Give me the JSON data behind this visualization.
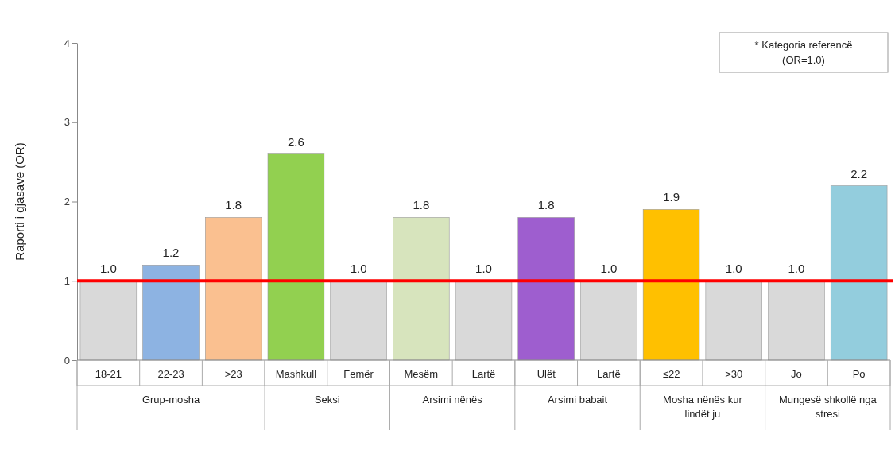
{
  "chart_data": {
    "type": "bar",
    "ylabel": "Raporti i gjasave (OR)",
    "categories": [
      "18-21",
      "22-23",
      ">23",
      "Mashkull",
      "Femër",
      "Mesëm",
      "Lartë",
      "Ulët",
      "Lartë",
      "≤22",
      ">30",
      "Jo",
      "Po"
    ],
    "values": [
      1.0,
      1.2,
      1.8,
      2.6,
      1.0,
      1.8,
      1.0,
      1.8,
      1.0,
      1.9,
      1.0,
      1.0,
      2.2
    ],
    "colors": [
      "#d9d9d9",
      "#8db3e2",
      "#fac090",
      "#92d050",
      "#d9d9d9",
      "#d7e4bd",
      "#d9d9d9",
      "#9e5ecf",
      "#d9d9d9",
      "#ffc000",
      "#d9d9d9",
      "#d9d9d9",
      "#93cddd"
    ],
    "value_labels": [
      "1.0",
      "1.2",
      "1.8",
      "2.6",
      "1.0",
      "1.8",
      "1.0",
      "1.8",
      "1.0",
      "1.9",
      "1.0",
      "1.0",
      "2.2"
    ],
    "ylim": [
      0,
      4
    ],
    "yticks": [
      0,
      1,
      2,
      3,
      4
    ],
    "grid": false,
    "ref_lines": [
      {
        "axis": "y",
        "value": 1,
        "color": "#ff0000"
      }
    ],
    "annotations": [
      "* Kategoria referencë\n(OR=1.0)",
      "Grup-mosha",
      "Seksi",
      "Arsimi nënës",
      "Arsimi babait",
      "Mosha nënës kur lindët ju",
      "Mungesë shkollë nga stresi"
    ]
  }
}
